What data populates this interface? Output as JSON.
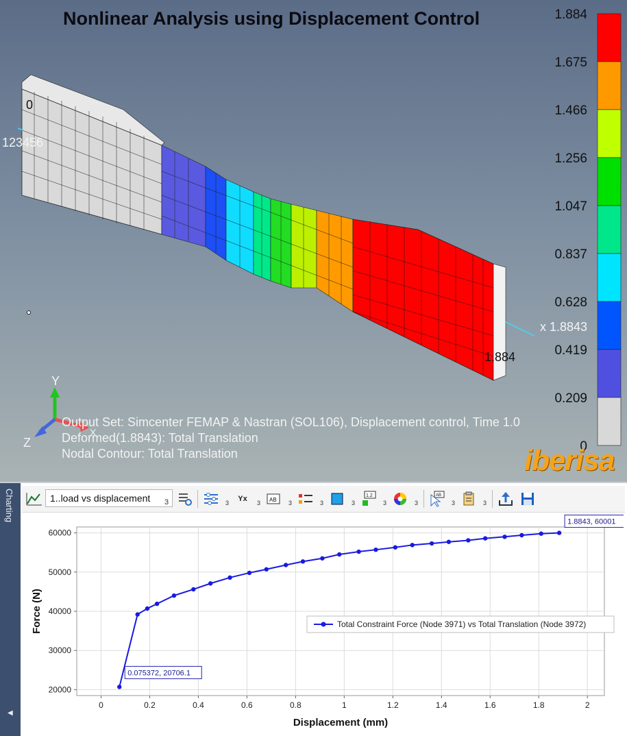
{
  "viewport": {
    "title": "Nonlinear Analysis using Displacement Control",
    "info_lines": [
      "Output Set: Simcenter FEMAP & Nastran (SOL106), Displacement control, Time 1.0",
      "Deformed(1.8843): Total Translation",
      "Nodal Contour: Total Translation"
    ],
    "node_label_top": "0",
    "node_label_left": "123456",
    "arrow_label": "x 1.8843",
    "end_label": "1.884",
    "axis_labels": {
      "y": "Y",
      "x": "X",
      "z": "Z"
    },
    "brand": "iberisa",
    "legend_values": [
      "1.884",
      "1.675",
      "1.466",
      "1.256",
      "1.047",
      "0.837",
      "0.628",
      "0.419",
      "0.209",
      "0"
    ],
    "legend_colors": [
      "#ff0000",
      "#ff9900",
      "#c0ff00",
      "#00e000",
      "#00e68a",
      "#00e5ff",
      "#0055ff",
      "#5050e0",
      "#d8d8d8"
    ]
  },
  "chart_panel": {
    "side_tab": "Charting",
    "selected_chart": "1..load vs displacement",
    "toolbar_badges": [
      "3",
      "3",
      "3",
      "3",
      "3",
      "3",
      "3",
      "3",
      "3",
      "3",
      "3"
    ],
    "toolbar_icons": [
      "line-chart-icon",
      "chart-settings-icon",
      "series-options-icon",
      "axis-xy-icon",
      "label-ab-icon",
      "legend-icon",
      "fill-color-icon",
      "number-format-icon",
      "color-wheel-icon",
      "select-label-icon",
      "clipboard-icon",
      "export-icon",
      "save-icon"
    ]
  },
  "chart_data": {
    "type": "line",
    "xlabel": "Displacement (mm)",
    "ylabel": "Force (N)",
    "xlim": [
      -0.1,
      2.07
    ],
    "ylim": [
      18500,
      61500
    ],
    "xticks": [
      "0",
      "0.2",
      "0.4",
      "0.6",
      "0.8",
      "1",
      "1.2",
      "1.4",
      "1.6",
      "1.8",
      "2"
    ],
    "yticks": [
      "20000",
      "30000",
      "40000",
      "50000",
      "60000"
    ],
    "grid": true,
    "legend_position": "right",
    "series": [
      {
        "name": "Total Constraint Force (Node 3971) vs Total Translation (Node 3972)",
        "color": "#1a1adf",
        "x": [
          0.075372,
          0.15,
          0.19,
          0.23,
          0.3,
          0.38,
          0.45,
          0.53,
          0.61,
          0.68,
          0.76,
          0.83,
          0.91,
          0.98,
          1.06,
          1.13,
          1.21,
          1.28,
          1.36,
          1.43,
          1.51,
          1.58,
          1.66,
          1.73,
          1.81,
          1.8843
        ],
        "y": [
          20706.1,
          39200,
          40700,
          41900,
          44000,
          45600,
          47100,
          48600,
          49800,
          50700,
          51800,
          52700,
          53500,
          54500,
          55200,
          55700,
          56300,
          56900,
          57300,
          57700,
          58100,
          58600,
          59000,
          59400,
          59800,
          60001
        ]
      }
    ],
    "annotations": [
      {
        "text": "0.075372, 20706.1",
        "x": 0.075372,
        "y": 20706.1
      },
      {
        "text": "1.8843, 60001",
        "x": 1.8843,
        "y": 60001
      }
    ]
  }
}
